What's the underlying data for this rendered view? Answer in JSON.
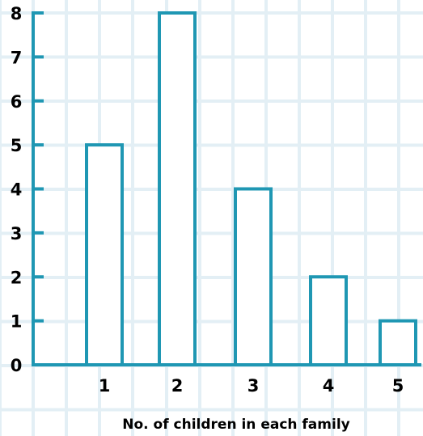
{
  "chart_data": {
    "type": "bar",
    "title": "",
    "xlabel": "No. of children in each family",
    "ylabel": "",
    "categories": [
      "1",
      "2",
      "3",
      "4",
      "5"
    ],
    "values": [
      5,
      8,
      4,
      2,
      1
    ],
    "y_ticks": [
      "0",
      "1",
      "2",
      "3",
      "4",
      "5",
      "6",
      "7",
      "8"
    ],
    "ylim": [
      0,
      8
    ],
    "grid": true,
    "legend": "none",
    "bar_fill": "#ffffff",
    "colors": {
      "axis": "#1f97b3",
      "bar_stroke": "#1f97b3",
      "grid": "#e3eff5",
      "text": "#000000"
    }
  }
}
